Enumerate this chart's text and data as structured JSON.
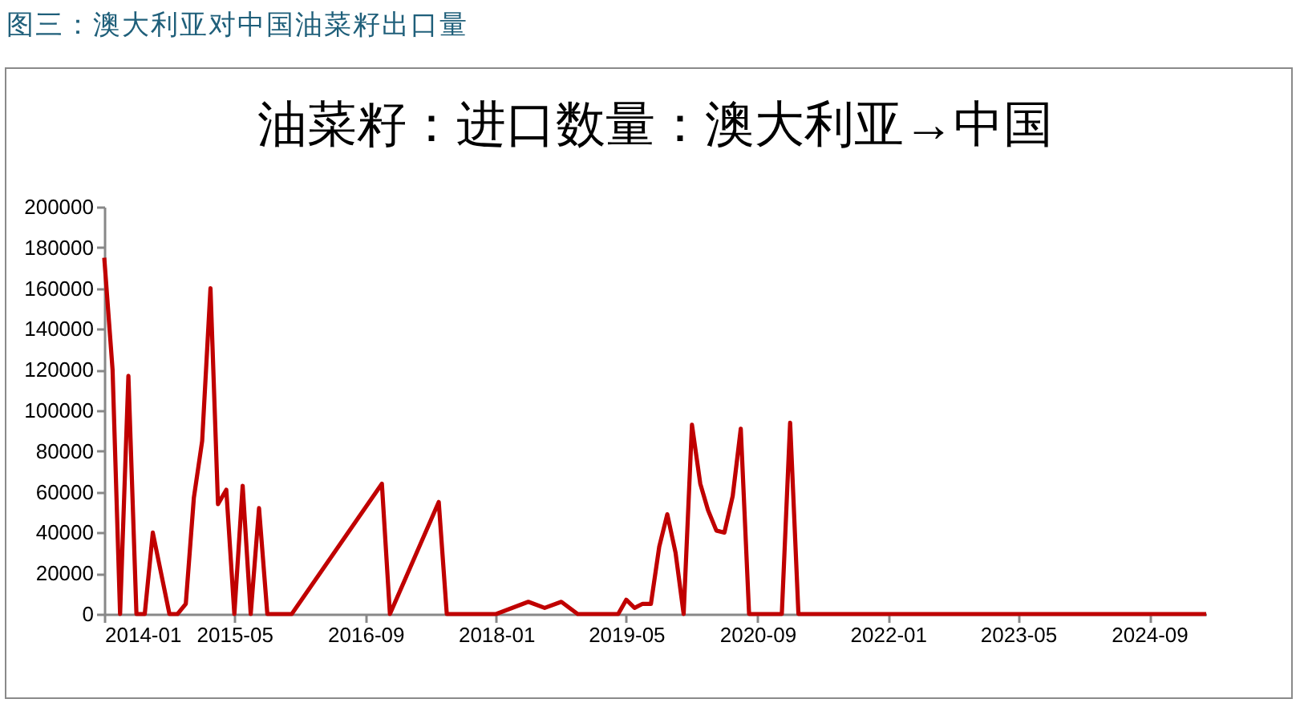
{
  "chart_data": {
    "type": "line",
    "title": "油菜籽：进口数量：澳大利亚→中国",
    "annotations": [
      "图三：澳大利亚对中国油菜籽出口量"
    ],
    "series": [
      {
        "color": "#c00000",
        "x": [
          "2014-01",
          "2014-02",
          "2014-03",
          "2014-04",
          "2014-05",
          "2014-06",
          "2014-07",
          "2014-09",
          "2014-10",
          "2014-11",
          "2014-12",
          "2015-01",
          "2015-02",
          "2015-03",
          "2015-04",
          "2015-05",
          "2015-06",
          "2015-07",
          "2015-08",
          "2015-09",
          "2015-10",
          "2015-11",
          "2015-12",
          "2016-11",
          "2016-12",
          "2017-06",
          "2017-07",
          "2017-08",
          "2017-09",
          "2017-10",
          "2017-11",
          "2017-12",
          "2018-01",
          "2018-05",
          "2018-07",
          "2018-09",
          "2018-11",
          "2018-12",
          "2019-01",
          "2019-02",
          "2019-03",
          "2019-04",
          "2019-05",
          "2019-06",
          "2019-07",
          "2019-08",
          "2019-09",
          "2019-10",
          "2019-11",
          "2019-12",
          "2020-01",
          "2020-02",
          "2020-03",
          "2020-04",
          "2020-05",
          "2020-06",
          "2020-07",
          "2020-08",
          "2020-09",
          "2020-10",
          "2020-11",
          "2020-12",
          "2021-01",
          "2021-02",
          "2021-06",
          "2021-10",
          "2022-02",
          "2022-06",
          "2022-10",
          "2023-02",
          "2023-06",
          "2023-10",
          "2024-02",
          "2024-06",
          "2024-10",
          "2025-02",
          "2025-04"
        ],
        "values": [
          175000,
          120000,
          0,
          117000,
          0,
          0,
          40000,
          0,
          0,
          5000,
          57000,
          85000,
          160000,
          54000,
          61000,
          0,
          63000,
          0,
          52000,
          0,
          0,
          0,
          0,
          64000,
          0,
          55000,
          0,
          0,
          0,
          0,
          0,
          0,
          0,
          6000,
          3000,
          6000,
          0,
          0,
          0,
          0,
          0,
          0,
          7000,
          3000,
          5000,
          5000,
          33000,
          49000,
          30000,
          0,
          93000,
          64000,
          51000,
          41000,
          40000,
          58000,
          91000,
          0,
          0,
          0,
          0,
          0,
          94000,
          0,
          0,
          0,
          0,
          0,
          0,
          0,
          0,
          0,
          0,
          0,
          0,
          0,
          0
        ]
      }
    ],
    "xlim": [
      "2014-01",
      "2025-04"
    ],
    "xticks": [
      "2014-01",
      "2015-05",
      "2016-09",
      "2018-01",
      "2019-05",
      "2020-09",
      "2022-01",
      "2023-05",
      "2024-09"
    ],
    "ylim": [
      0,
      200000
    ],
    "yticks": [
      0,
      20000,
      40000,
      60000,
      80000,
      100000,
      120000,
      140000,
      160000,
      180000,
      200000
    ],
    "grid": false,
    "legend": false,
    "marker": "none",
    "line_style": "solid"
  }
}
